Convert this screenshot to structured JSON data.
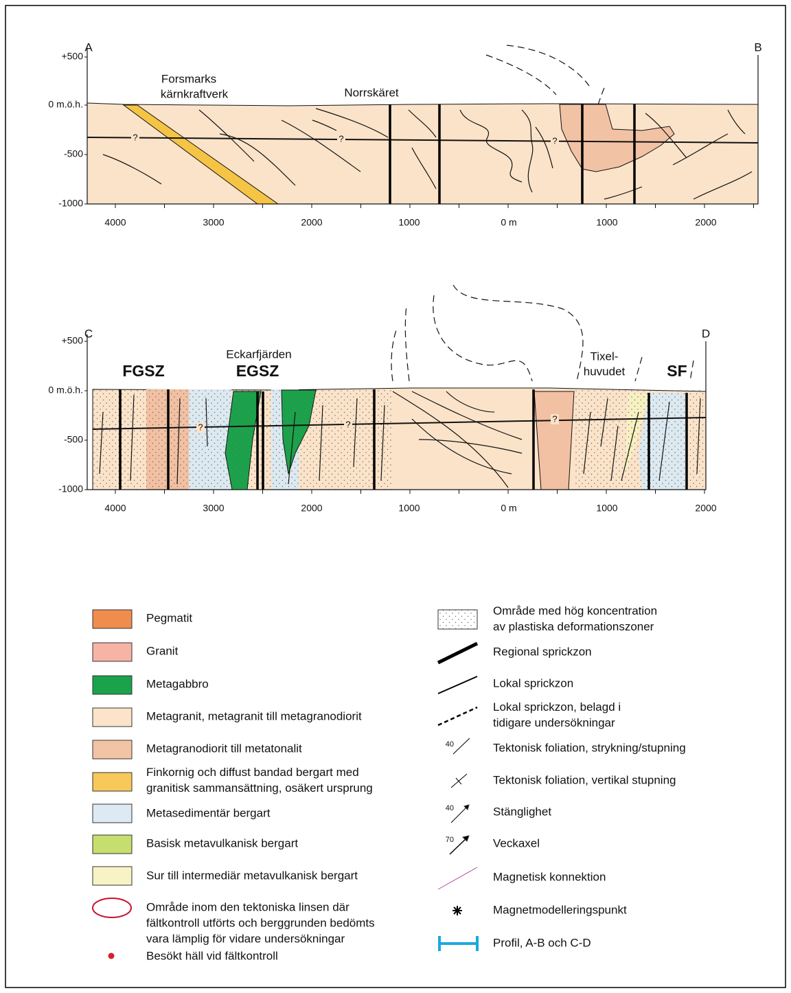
{
  "profiles": [
    {
      "start": "A",
      "end": "B",
      "depth_labels": [
        "+500",
        "0 m.ö.h.",
        "-500",
        "-1000"
      ],
      "distance_labels": [
        "4000",
        "3000",
        "2000",
        "1000",
        "0 m",
        "1000",
        "2000"
      ],
      "places": [
        "Forsmarks",
        "kärnkraftverk",
        "Norrskäret"
      ],
      "uncertain": [
        "?",
        "?",
        "?"
      ]
    },
    {
      "start": "C",
      "end": "D",
      "depth_labels": [
        "+500",
        "0 m.ö.h.",
        "-500",
        "-1000"
      ],
      "distance_labels": [
        "4000",
        "3000",
        "2000",
        "1000",
        "0 m",
        "1000",
        "2000"
      ],
      "places": [
        "FGSZ",
        "Eckarfjärden",
        "EGSZ",
        "Tixel-",
        "huvudet",
        "SF"
      ],
      "uncertain": [
        "?",
        "?",
        "?"
      ]
    }
  ],
  "legend": {
    "rock_types": [
      {
        "lines": [
          "Pegmatit"
        ]
      },
      {
        "lines": [
          "Granit"
        ]
      },
      {
        "lines": [
          "Metagabbro"
        ]
      },
      {
        "lines": [
          "Metagranit, metagranit till metagranodiorit"
        ]
      },
      {
        "lines": [
          "Metagranodiorit till metatonalit"
        ]
      },
      {
        "lines": [
          "Finkornig och diffust bandad bergart med",
          "granitisk sammansättning, osäkert ursprung"
        ]
      },
      {
        "lines": [
          "Metasedimentär bergart"
        ]
      },
      {
        "lines": [
          "Basisk metavulkanisk bergart"
        ]
      },
      {
        "lines": [
          "Sur till intermediär metavulkanisk bergart"
        ]
      },
      {
        "lines": [
          "Område inom den tektoniska linsen där",
          "fältkontroll utförts och berggrunden bedömts",
          "vara lämplig för vidare undersökningar"
        ]
      },
      {
        "lines": [
          "Besökt häll vid fältkontroll"
        ]
      }
    ],
    "symbols": [
      {
        "lines": [
          "Område med hög koncentration",
          "av plastiska deformationszoner"
        ]
      },
      {
        "lines": [
          "Regional sprickzon"
        ]
      },
      {
        "lines": [
          "Lokal sprickzon"
        ]
      },
      {
        "lines": [
          "Lokal sprickzon, belagd i",
          "tidigare undersökningar"
        ]
      },
      {
        "lines": [
          "Tektonisk foliation, strykning/stupning"
        ],
        "angle": "40"
      },
      {
        "lines": [
          "Tektonisk foliation, vertikal stupning"
        ]
      },
      {
        "lines": [
          "Stänglighet"
        ],
        "angle": "40"
      },
      {
        "lines": [
          "Veckaxel"
        ],
        "angle": "70"
      },
      {
        "lines": [
          "Magnetisk konnektion"
        ]
      },
      {
        "lines": [
          "Magnetmodelleringspunkt"
        ]
      },
      {
        "lines": [
          "Profil, A-B och C-D"
        ]
      }
    ]
  }
}
